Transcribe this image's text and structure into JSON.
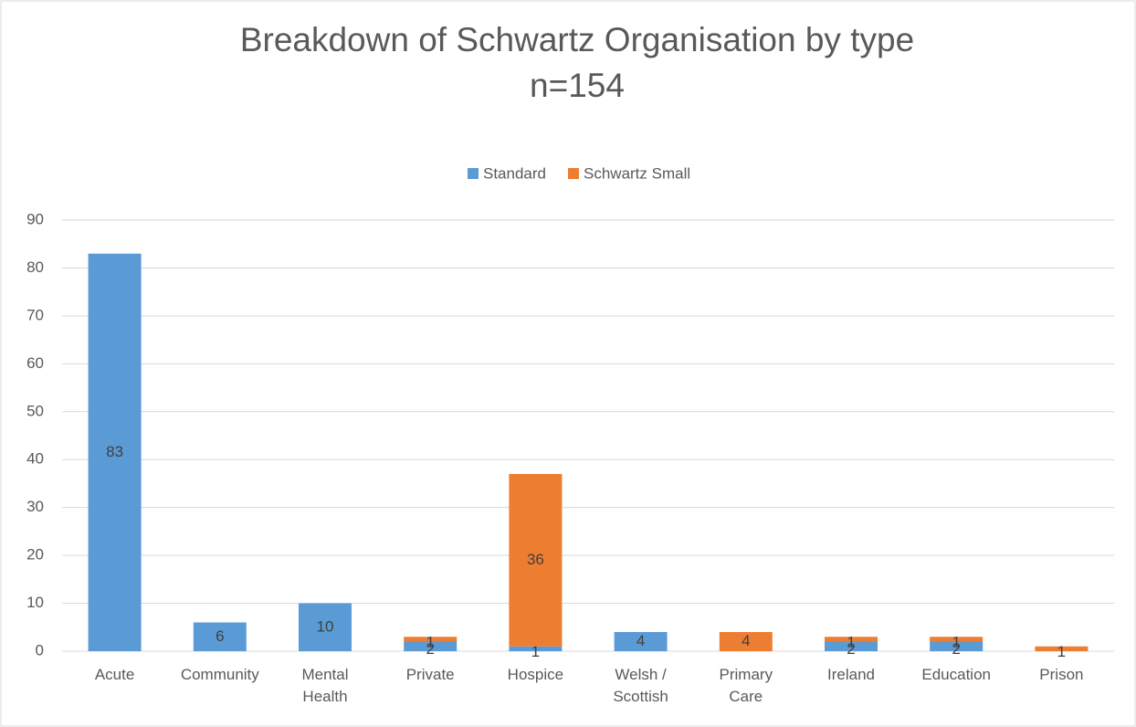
{
  "chart_data": {
    "type": "stacked_bar",
    "title": "Breakdown of Schwartz Organisation by type",
    "subtitle": "n=154",
    "categories": [
      "Acute",
      "Community",
      "Mental Health",
      "Private",
      "Hospice",
      "Welsh / Scottish",
      "Primary Care",
      "Ireland",
      "Education",
      "Prison"
    ],
    "series": [
      {
        "name": "Standard",
        "color": "#5b9bd5",
        "values": [
          83,
          6,
          10,
          2,
          1,
          4,
          null,
          2,
          2,
          null
        ]
      },
      {
        "name": "Schwartz Small",
        "color": "#ed7d31",
        "values": [
          null,
          null,
          null,
          1,
          36,
          null,
          4,
          1,
          1,
          1
        ]
      }
    ],
    "ylim": [
      0,
      90
    ],
    "yticks": [
      0,
      10,
      20,
      30,
      40,
      50,
      60,
      70,
      80,
      90
    ],
    "grid": true,
    "legend": "top"
  }
}
